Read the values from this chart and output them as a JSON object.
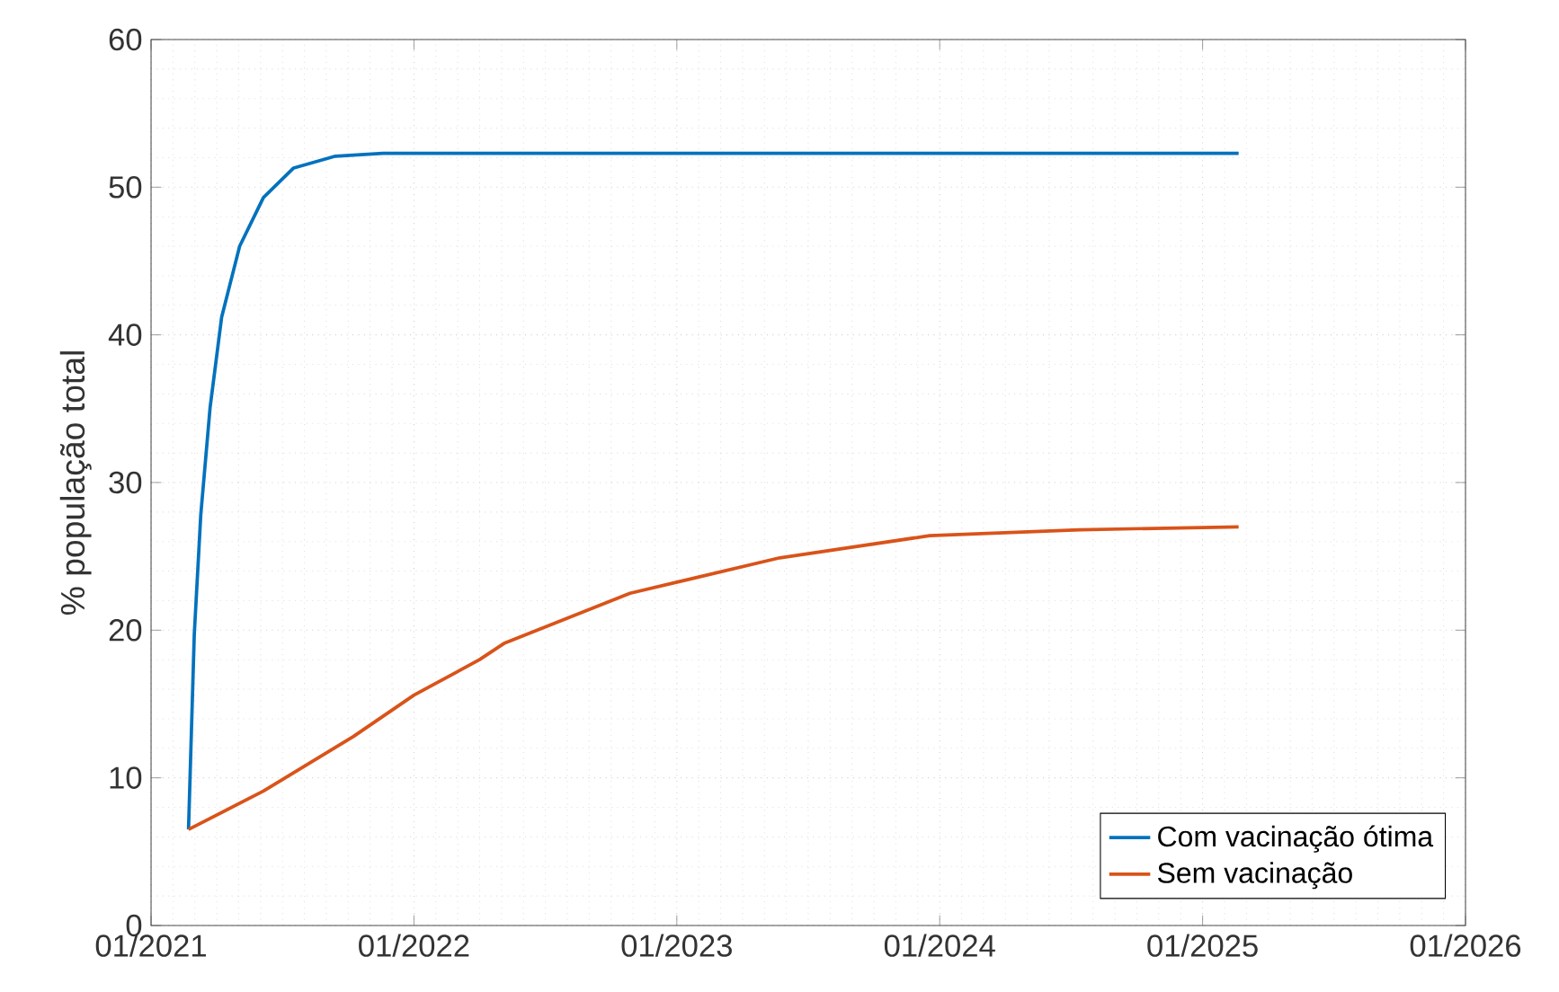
{
  "chart_data": {
    "type": "line",
    "ylabel": "% população total",
    "xlim": [
      "2021-01-01",
      "2026-01-01"
    ],
    "xticks": [
      {
        "value": "2021-01-01",
        "label": "01/2021"
      },
      {
        "value": "2022-01-01",
        "label": "01/2022"
      },
      {
        "value": "2023-01-01",
        "label": "01/2023"
      },
      {
        "value": "2024-01-01",
        "label": "01/2024"
      },
      {
        "value": "2025-01-01",
        "label": "01/2025"
      },
      {
        "value": "2026-01-01",
        "label": "01/2026"
      }
    ],
    "ylim": [
      0,
      60
    ],
    "yticks": [
      0,
      10,
      20,
      30,
      40,
      50,
      60
    ],
    "grid": true,
    "legend": "bottom right",
    "line_style": "solid",
    "series": [
      {
        "name": "Com vacinação ótima",
        "color": "#0072bd",
        "x": [
          "2021-02-22",
          "2021-03-02",
          "2021-03-11",
          "2021-03-24",
          "2021-04-09",
          "2021-05-04",
          "2021-06-06",
          "2021-07-18",
          "2021-09-14",
          "2021-11-19",
          "2025-02-20"
        ],
        "values": [
          6.5,
          19.7,
          27.8,
          35.1,
          41.2,
          46.0,
          49.3,
          51.3,
          52.1,
          52.3,
          52.3
        ]
      },
      {
        "name": "Sem vacinação",
        "color": "#d95319",
        "x": [
          "2021-02-22",
          "2021-06-06",
          "2021-10-09",
          "2022-01-01",
          "2022-04-02",
          "2022-05-06",
          "2022-10-28",
          "2023-05-24",
          "2023-12-18",
          "2024-07-14",
          "2025-02-20"
        ],
        "values": [
          6.5,
          9.1,
          12.8,
          15.6,
          18.0,
          19.1,
          22.5,
          24.9,
          26.4,
          26.8,
          27.0
        ]
      }
    ]
  }
}
